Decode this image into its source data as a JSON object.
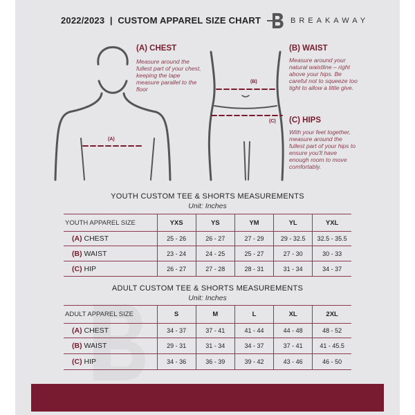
{
  "header": {
    "title": "2022/2023  |  CUSTOM APPAREL SIZE CHART",
    "brand": "BREAKAWAY"
  },
  "colors": {
    "accent": "#7a1a2e",
    "background": "#e6e6e8"
  },
  "guide": {
    "chest": {
      "title": "(A) CHEST",
      "text": "Measure around the fullest part of your chest, keeping the tape measure parallel to the floor",
      "marker": "(A)"
    },
    "waist": {
      "title": "(B) WAIST",
      "text": "Measure around your natural waistline – right above your hips. Be careful not to squeeze too tight to allow a little give.",
      "marker": "(B)"
    },
    "hips": {
      "title": "(C) HIPS",
      "text": "With your feet together, measure around the fullest part of your hips to ensure you'll have enough room to move comfortably.",
      "marker": "(C)"
    }
  },
  "youth": {
    "title": "YOUTH CUSTOM TEE & SHORTS MEASUREMENTS",
    "unit": "Unit: Inches",
    "header": [
      "YOUTH APPAREL SIZE",
      "YXS",
      "YS",
      "YM",
      "YL",
      "YXL"
    ],
    "rows": [
      {
        "letter": "(A)",
        "name": "CHEST",
        "values": [
          "25 - 26",
          "26 - 27",
          "27 - 29",
          "29 - 32.5",
          "32.5 - 35.5"
        ]
      },
      {
        "letter": "(B)",
        "name": "WAIST",
        "values": [
          "23 - 24",
          "24 - 25",
          "25 - 27",
          "27 - 30",
          "30 - 33"
        ]
      },
      {
        "letter": "(C)",
        "name": "HIP",
        "values": [
          "26 - 27",
          "27 - 28",
          "28 - 31",
          "31 - 34",
          "34 - 37"
        ]
      }
    ]
  },
  "adult": {
    "title": "ADULT CUSTOM TEE & SHORTS MEASUREMENTS",
    "unit": "Unit: Inches",
    "header": [
      "ADULT APPAREL SIZE",
      "S",
      "M",
      "L",
      "XL",
      "2XL"
    ],
    "rows": [
      {
        "letter": "(A)",
        "name": "CHEST",
        "values": [
          "34 - 37",
          "37 - 41",
          "41 - 44",
          "44 - 48",
          "48 - 52"
        ]
      },
      {
        "letter": "(B)",
        "name": "WAIST",
        "values": [
          "29 - 31",
          "31 - 34",
          "34 - 37",
          "37 - 41",
          "41 - 45.5"
        ]
      },
      {
        "letter": "(C)",
        "name": "HIP",
        "values": [
          "34 - 36",
          "36 - 39",
          "39 - 42",
          "43 - 46",
          "46 - 50"
        ]
      }
    ]
  }
}
